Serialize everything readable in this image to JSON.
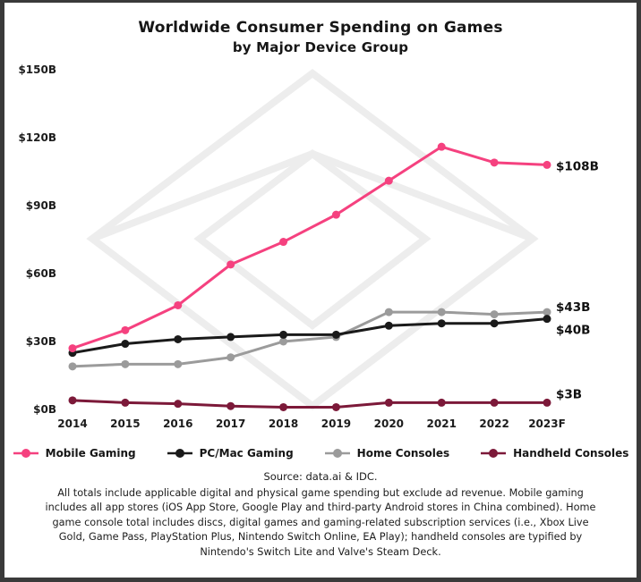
{
  "title": "Worldwide Consumer Spending on Games",
  "subtitle": "by Major Device Group",
  "chart_data": {
    "type": "line",
    "x": [
      "2014",
      "2015",
      "2016",
      "2017",
      "2018",
      "2019",
      "2020",
      "2021",
      "2022",
      "2023F"
    ],
    "series": [
      {
        "name": "Mobile Gaming",
        "color": "#f5417f",
        "values": [
          27,
          35,
          46,
          64,
          74,
          86,
          101,
          116,
          109,
          108
        ],
        "end_label": "$108B",
        "label_dy": 2
      },
      {
        "name": "PC/Mac Gaming",
        "color": "#1a1a1a",
        "values": [
          25,
          29,
          31,
          32,
          33,
          33,
          37,
          38,
          38,
          40
        ],
        "end_label": "$40B",
        "label_dy": 13
      },
      {
        "name": "Home Consoles",
        "color": "#9b9b9b",
        "values": [
          19,
          20,
          20,
          23,
          30,
          32,
          43,
          43,
          42,
          43
        ],
        "end_label": "$43B",
        "label_dy": -5
      },
      {
        "name": "Handheld Consoles",
        "color": "#7c1939",
        "values": [
          4,
          3,
          2.5,
          1.5,
          1,
          1,
          3,
          3,
          3,
          3
        ],
        "end_label": "$3B",
        "label_dy": -9
      }
    ],
    "ylim": [
      0,
      150
    ],
    "yticks": [
      {
        "value": 0,
        "label": "$0B"
      },
      {
        "value": 30,
        "label": "$30B"
      },
      {
        "value": 60,
        "label": "$60B"
      },
      {
        "value": 90,
        "label": "$90B"
      },
      {
        "value": 120,
        "label": "$120B"
      },
      {
        "value": 150,
        "label": "$150B"
      }
    ],
    "grid": false,
    "legend_position": "bottom",
    "watermark": "data.ai diamond logo",
    "watermark_color": "#ededed"
  },
  "source": "Source: data.ai & IDC.",
  "footnote": "All totals include applicable digital and physical game spending but exclude ad revenue. Mobile gaming includes all app stores (iOS App Store, Google Play and third-party Android stores in China combined). Home game console total includes discs, digital games and gaming-related subscription services (i.e., Xbox Live Gold, Game Pass, PlayStation Plus, Nintendo Switch Online, EA Play); handheld consoles are typified by Nintendo's Switch Lite and Valve's Steam Deck."
}
